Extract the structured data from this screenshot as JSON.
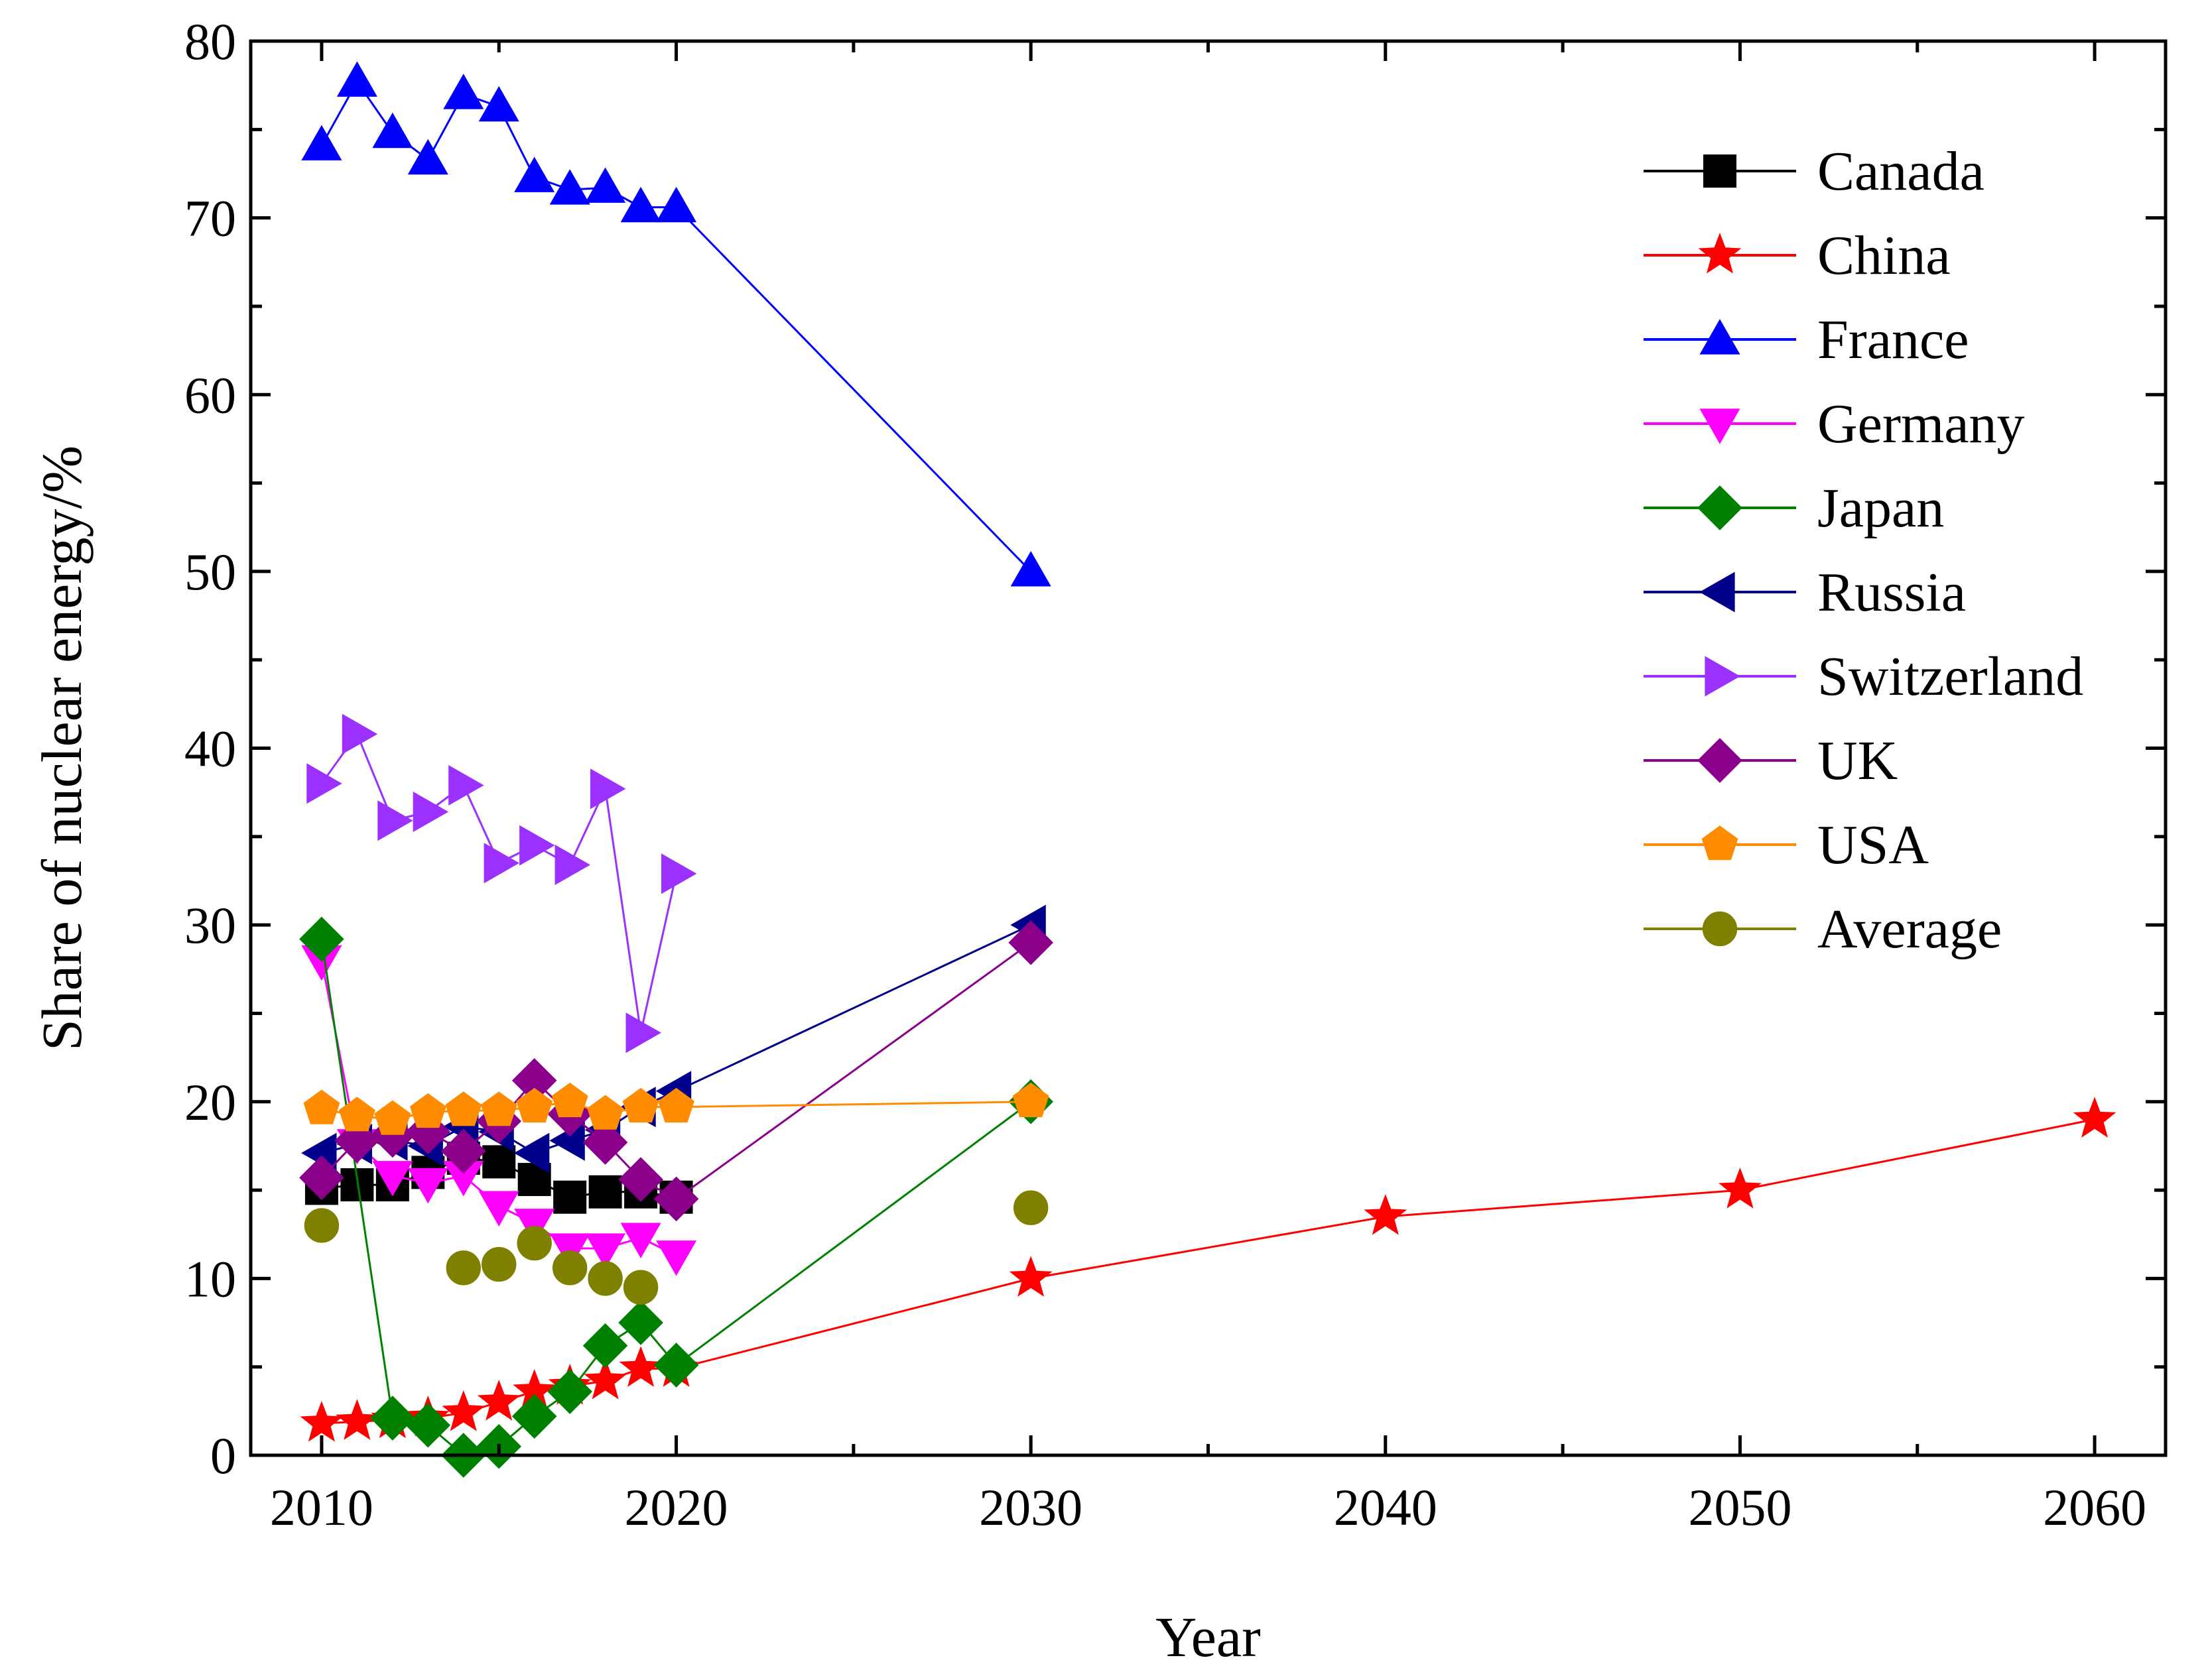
{
  "chart_data": {
    "type": "line",
    "title": "",
    "xlabel": "Year",
    "ylabel": "Share of nuclear energy/%",
    "xlim": [
      2008,
      2062
    ],
    "ylim": [
      0,
      80
    ],
    "x_ticks": [
      2010,
      2020,
      2030,
      2040,
      2050,
      2060
    ],
    "x_tick_labels": [
      "2010",
      "2020",
      "2030",
      "2040",
      "2050",
      "2060"
    ],
    "y_ticks": [
      0,
      10,
      20,
      30,
      40,
      50,
      60,
      70,
      80
    ],
    "y_tick_labels": [
      "0",
      "10",
      "20",
      "30",
      "40",
      "50",
      "60",
      "70",
      "80"
    ],
    "grid": false,
    "legend_position": "top-right",
    "series": [
      {
        "name": "Canada",
        "color": "#000000",
        "marker": "square",
        "points": [
          [
            2010,
            15.1
          ],
          [
            2011,
            15.3
          ],
          [
            2012,
            15.3
          ],
          [
            2013,
            16.0
          ],
          [
            2014,
            16.8
          ],
          [
            2015,
            16.6
          ],
          [
            2016,
            15.6
          ],
          [
            2017,
            14.6
          ],
          [
            2018,
            14.9
          ],
          [
            2019,
            14.9
          ],
          [
            2020,
            14.6
          ]
        ]
      },
      {
        "name": "China",
        "color": "#ff0000",
        "marker": "star",
        "points": [
          [
            2010,
            1.8
          ],
          [
            2011,
            1.9
          ],
          [
            2012,
            2.0
          ],
          [
            2013,
            2.1
          ],
          [
            2014,
            2.4
          ],
          [
            2015,
            3.0
          ],
          [
            2016,
            3.6
          ],
          [
            2017,
            3.9
          ],
          [
            2018,
            4.2
          ],
          [
            2019,
            4.9
          ],
          [
            2020,
            4.9
          ],
          [
            2030,
            10
          ],
          [
            2040,
            13.5
          ],
          [
            2050,
            15
          ],
          [
            2060,
            19
          ]
        ]
      },
      {
        "name": "France",
        "color": "#0000ff",
        "marker": "triangle-up",
        "points": [
          [
            2010,
            74.1
          ],
          [
            2011,
            77.7
          ],
          [
            2012,
            74.8
          ],
          [
            2013,
            73.3
          ],
          [
            2014,
            77.0
          ],
          [
            2015,
            76.3
          ],
          [
            2016,
            72.3
          ],
          [
            2017,
            71.6
          ],
          [
            2018,
            71.7
          ],
          [
            2019,
            70.6
          ],
          [
            2020,
            70.6
          ],
          [
            2030,
            50
          ]
        ]
      },
      {
        "name": "Germany",
        "color": "#ff00ff",
        "marker": "triangle-down",
        "points": [
          [
            2010,
            28.0
          ],
          [
            2011,
            17.6
          ],
          [
            2012,
            15.8
          ],
          [
            2013,
            15.4
          ],
          [
            2014,
            15.8
          ],
          [
            2015,
            14.1
          ],
          [
            2016,
            13.1
          ],
          [
            2017,
            11.7
          ],
          [
            2018,
            11.7
          ],
          [
            2019,
            12.3
          ],
          [
            2020,
            11.3
          ]
        ]
      },
      {
        "name": "Japan",
        "color": "#008000",
        "marker": "diamond",
        "points": [
          [
            2010,
            29.2
          ],
          [
            2012,
            2.1
          ],
          [
            2013,
            1.7
          ],
          [
            2014,
            0.0
          ],
          [
            2015,
            0.5
          ],
          [
            2016,
            2.2
          ],
          [
            2017,
            3.6
          ],
          [
            2018,
            6.2
          ],
          [
            2019,
            7.5
          ],
          [
            2020,
            5.1
          ],
          [
            2030,
            20
          ]
        ]
      },
      {
        "name": "Russia",
        "color": "#00008b",
        "marker": "triangle-left",
        "points": [
          [
            2010,
            17.1
          ],
          [
            2011,
            17.6
          ],
          [
            2012,
            17.8
          ],
          [
            2013,
            17.5
          ],
          [
            2014,
            18.6
          ],
          [
            2015,
            18.3
          ],
          [
            2016,
            17.1
          ],
          [
            2017,
            17.8
          ],
          [
            2018,
            18.4
          ],
          [
            2019,
            19.7
          ],
          [
            2020,
            20.6
          ],
          [
            2030,
            30
          ]
        ]
      },
      {
        "name": "Switzerland",
        "color": "#9b30ff",
        "marker": "triangle-right",
        "points": [
          [
            2010,
            38.0
          ],
          [
            2011,
            40.8
          ],
          [
            2012,
            35.9
          ],
          [
            2013,
            36.4
          ],
          [
            2014,
            37.9
          ],
          [
            2015,
            33.5
          ],
          [
            2016,
            34.5
          ],
          [
            2017,
            33.4
          ],
          [
            2018,
            37.7
          ],
          [
            2019,
            23.9
          ],
          [
            2020,
            32.9
          ]
        ]
      },
      {
        "name": "UK",
        "color": "#8b008b",
        "marker": "diamond",
        "points": [
          [
            2010,
            15.7
          ],
          [
            2011,
            17.8
          ],
          [
            2012,
            18.1
          ],
          [
            2013,
            18.3
          ],
          [
            2014,
            17.2
          ],
          [
            2015,
            18.9
          ],
          [
            2016,
            21.2
          ],
          [
            2017,
            19.3
          ],
          [
            2018,
            17.7
          ],
          [
            2019,
            15.6
          ],
          [
            2020,
            14.5
          ],
          [
            2030,
            29
          ]
        ]
      },
      {
        "name": "USA",
        "color": "#ff8c00",
        "marker": "pentagon",
        "points": [
          [
            2010,
            19.6
          ],
          [
            2011,
            19.2
          ],
          [
            2012,
            19.0
          ],
          [
            2013,
            19.4
          ],
          [
            2014,
            19.5
          ],
          [
            2015,
            19.5
          ],
          [
            2016,
            19.7
          ],
          [
            2017,
            20.0
          ],
          [
            2018,
            19.3
          ],
          [
            2019,
            19.7
          ],
          [
            2020,
            19.7
          ],
          [
            2030,
            20
          ]
        ]
      },
      {
        "name": "Average",
        "color": "#808000",
        "marker": "circle",
        "line": false,
        "points": [
          [
            2010,
            13.0
          ],
          [
            2014,
            10.6
          ],
          [
            2015,
            10.8
          ],
          [
            2016,
            12.0
          ],
          [
            2017,
            10.6
          ],
          [
            2018,
            10.0
          ],
          [
            2019,
            9.5
          ],
          [
            2030,
            14
          ]
        ]
      }
    ]
  }
}
